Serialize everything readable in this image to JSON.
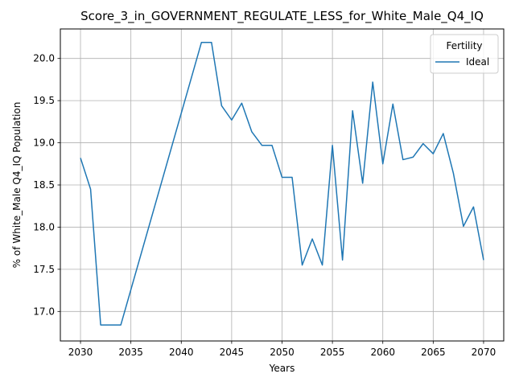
{
  "chart_data": {
    "type": "line",
    "title": "Score_3_in_GOVERNMENT_REGULATE_LESS_for_White_Male_Q4_IQ",
    "xlabel": "Years",
    "ylabel": "% of White_Male Q4_IQ Population",
    "xlim": [
      2028,
      2072
    ],
    "ylim": [
      16.65,
      20.35
    ],
    "x_ticks": [
      2030,
      2035,
      2040,
      2045,
      2050,
      2055,
      2060,
      2065,
      2070
    ],
    "y_ticks": [
      17.0,
      17.5,
      18.0,
      18.5,
      19.0,
      19.5,
      20.0
    ],
    "grid": true,
    "legend": {
      "title": "Fertility",
      "placement": "top-right"
    },
    "series": [
      {
        "name": "Ideal",
        "color": "#1f77b4",
        "x": [
          2030,
          2031,
          2032,
          2033,
          2034,
          2041,
          2042,
          2043,
          2044,
          2045,
          2046,
          2047,
          2048,
          2049,
          2050,
          2051,
          2052,
          2053,
          2054,
          2055,
          2056,
          2057,
          2058,
          2059,
          2060,
          2061,
          2062,
          2063,
          2064,
          2065,
          2066,
          2067,
          2068,
          2069,
          2070
        ],
        "y": [
          18.82,
          18.45,
          16.84,
          16.84,
          16.84,
          19.77,
          20.19,
          20.19,
          19.44,
          19.27,
          19.47,
          19.13,
          18.97,
          18.97,
          18.59,
          18.59,
          17.55,
          17.86,
          17.55,
          18.97,
          17.61,
          19.38,
          18.52,
          19.72,
          18.75,
          19.46,
          18.8,
          18.83,
          18.99,
          18.87,
          19.11,
          18.64,
          18.01,
          18.24,
          17.61
        ]
      }
    ]
  }
}
